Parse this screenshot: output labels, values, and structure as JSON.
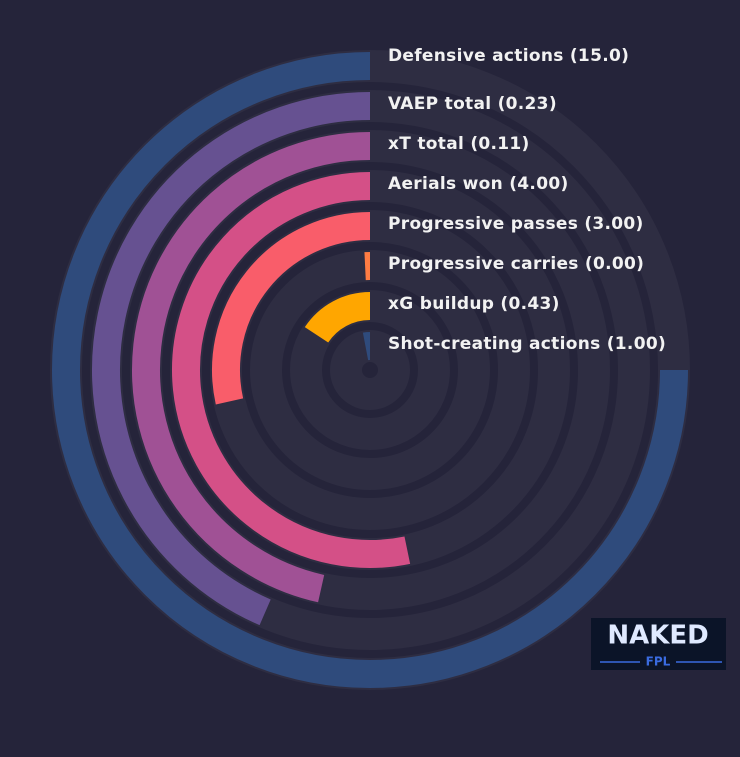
{
  "chart_data": {
    "type": "radial-bar",
    "categories": [
      "Shot-creating actions (1.00)",
      "xG buildup (0.43)",
      "Progressive carries (0.00)",
      "Progressive passes (3.00)",
      "Aerials won (4.00)",
      "xT total (0.11)",
      "VAEP total (0.23)",
      "Defensive actions (15.0)"
    ],
    "values": [
      4,
      21,
      1,
      38,
      71,
      62,
      58,
      100
    ],
    "colors": [
      "#2f4b7c",
      "#ffa600",
      "#ff7c43",
      "#f95d6a",
      "#d45087",
      "#a05195",
      "#665191",
      "#2f4b7c"
    ],
    "ylim": [
      0,
      100
    ],
    "logo": {
      "title": "NAKED",
      "subtitle": "FPL"
    }
  }
}
